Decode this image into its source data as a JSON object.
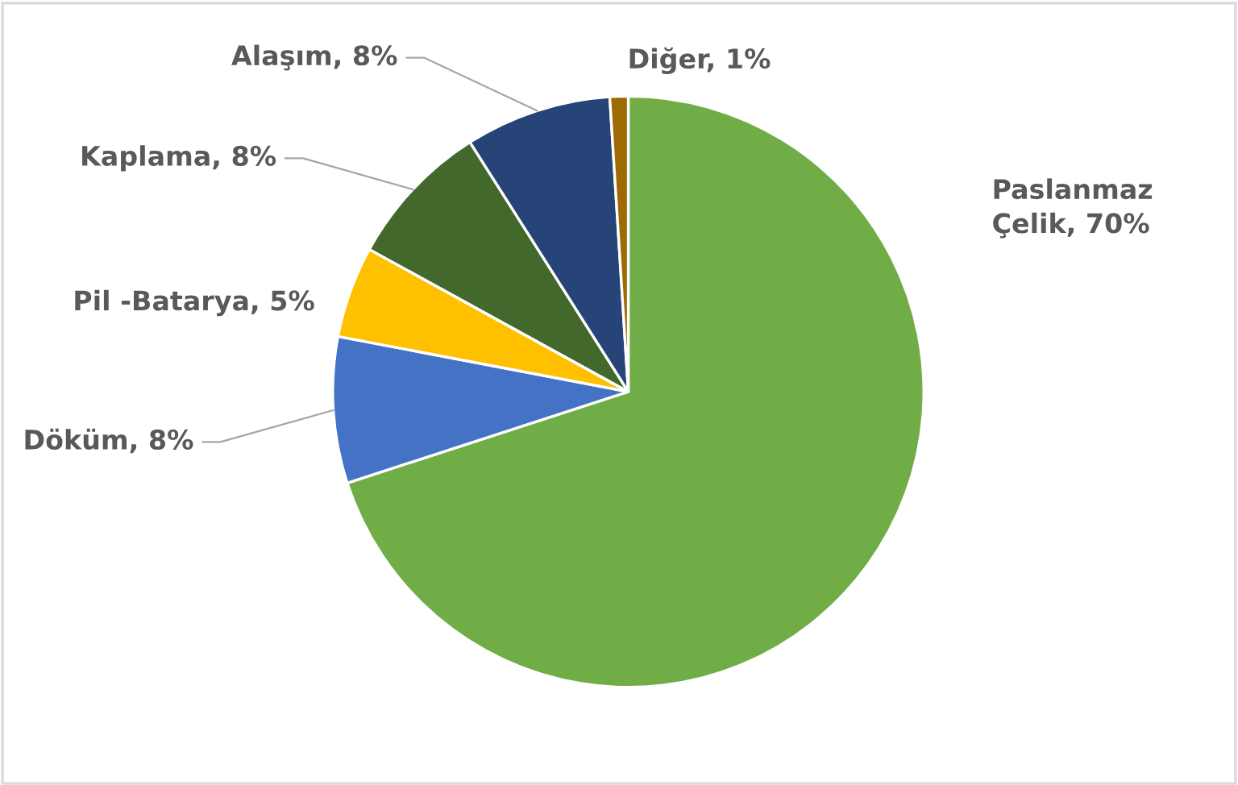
{
  "chart_data": {
    "type": "pie",
    "categories": [
      "Paslanmaz Çelik",
      "Döküm",
      "Pil -Batarya",
      "Kaplama",
      "Alaşım",
      "Diğer"
    ],
    "values": [
      70,
      8,
      5,
      8,
      8,
      1
    ],
    "value_labels": [
      "70%",
      "8%",
      "5%",
      "8%",
      "8%",
      "1%"
    ],
    "colors": [
      "#70ad47",
      "#4472c4",
      "#ffc000",
      "#43682b",
      "#264478",
      "#9e6a03"
    ],
    "legend": false
  }
}
